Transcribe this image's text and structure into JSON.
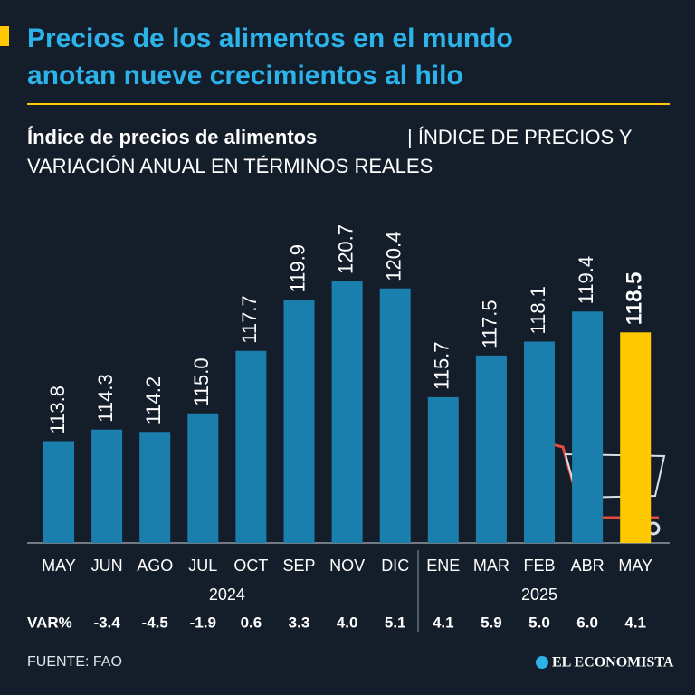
{
  "chart_data": {
    "type": "bar",
    "title_lines": [
      "Precios de los alimentos en el mundo",
      "anotan nueve crecimientos al hilo"
    ],
    "subtitle_bold": "Índice de precios de alimentos",
    "subtitle_lines": [
      "| ÍNDICE DE PRECIOS Y",
      "VARIACIÓN ANUAL EN TÉRMINOS REALES"
    ],
    "categories": [
      "MAY",
      "JUN",
      "AGO",
      "JUL",
      "OCT",
      "SEP",
      "NOV",
      "DIC",
      "ENE",
      "MAR",
      "FEB",
      "ABR",
      "MAY"
    ],
    "values": [
      113.8,
      114.3,
      114.2,
      115.0,
      117.7,
      119.9,
      120.7,
      120.4,
      115.7,
      117.5,
      118.1,
      119.4,
      118.5
    ],
    "value_labels": [
      "113.8",
      "114.3",
      "114.2",
      "115.0",
      "117.7",
      "119.9",
      "120.7",
      "120.4",
      "115.7",
      "117.5",
      "118.1",
      "119.4",
      "118.5"
    ],
    "years": [
      "2024",
      "2025"
    ],
    "variation_label": "VAR%",
    "variation": [
      null,
      -3.4,
      -4.5,
      -1.9,
      0.6,
      3.3,
      4.0,
      5.1,
      4.1,
      5.9,
      5.0,
      6.0,
      4.1
    ],
    "variation_labels": [
      null,
      "-3.4",
      "-4.5",
      "-1.9",
      "0.6",
      "3.3",
      "4.0",
      "5.1",
      "4.1",
      "5.9",
      "5.0",
      "6.0",
      "4.1"
    ],
    "color": "#1b7fae",
    "highlight_color": "#ffc800",
    "ylim": [
      109.4,
      122.5
    ],
    "source": "FUENTE: FAO",
    "brand": "EL ECONOMISTA"
  }
}
